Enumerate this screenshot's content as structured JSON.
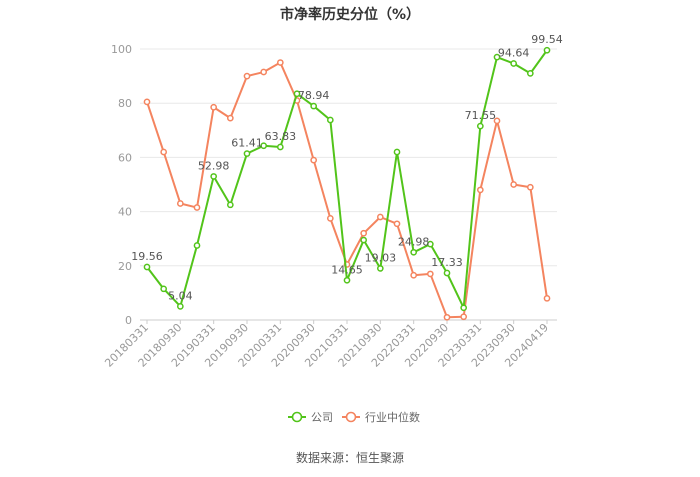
{
  "chart_data": {
    "type": "line",
    "title": "市净率历史分位（%）",
    "source": "数据来源：恒生聚源",
    "ylim": [
      0,
      100
    ],
    "yticks": [
      0,
      20,
      40,
      60,
      80,
      100
    ],
    "grid": true,
    "legend_position": "bottom",
    "x": [
      "20180331",
      "20180630",
      "20180930",
      "20181231",
      "20190331",
      "20190630",
      "20190930",
      "20191231",
      "20200331",
      "20200630",
      "20200930",
      "20201231",
      "20210331",
      "20210630",
      "20210930",
      "20211231",
      "20220331",
      "20220630",
      "20220930",
      "20221231",
      "20230331",
      "20230630",
      "20230930",
      "20231231",
      "20240419"
    ],
    "xtick_labels": [
      "20180331",
      "20180930",
      "20190331",
      "20190930",
      "20200331",
      "20200930",
      "20210331",
      "20210930",
      "20220331",
      "20220930",
      "20230331",
      "20230930",
      "20240419"
    ],
    "series": [
      {
        "name": "公司",
        "color": "#52c41a",
        "values": [
          19.56,
          11.5,
          5.04,
          27.5,
          52.98,
          42.5,
          61.41,
          64.3,
          63.83,
          83.5,
          78.94,
          73.8,
          14.65,
          29.5,
          19.03,
          62.0,
          24.98,
          28.0,
          17.33,
          4.5,
          71.55,
          97.0,
          94.64,
          91.0,
          99.54
        ],
        "labels": {
          "0": "19.56",
          "2": "5.04",
          "4": "52.98",
          "6": "61.41",
          "8": "63.83",
          "10": "78.94",
          "12": "14.65",
          "14": "19.03",
          "16": "24.98",
          "18": "17.33",
          "20": "71.55",
          "22": "94.64",
          "24": "99.54"
        }
      },
      {
        "name": "行业中位数",
        "color": "#f4845f",
        "values": [
          80.5,
          62.0,
          43.0,
          41.5,
          78.5,
          74.5,
          90.0,
          91.5,
          95.0,
          81.0,
          59.0,
          37.5,
          20.5,
          32.0,
          38.0,
          35.5,
          16.5,
          17.0,
          1.0,
          1.2,
          48.0,
          73.5,
          50.0,
          49.0,
          8.0
        ]
      }
    ]
  }
}
